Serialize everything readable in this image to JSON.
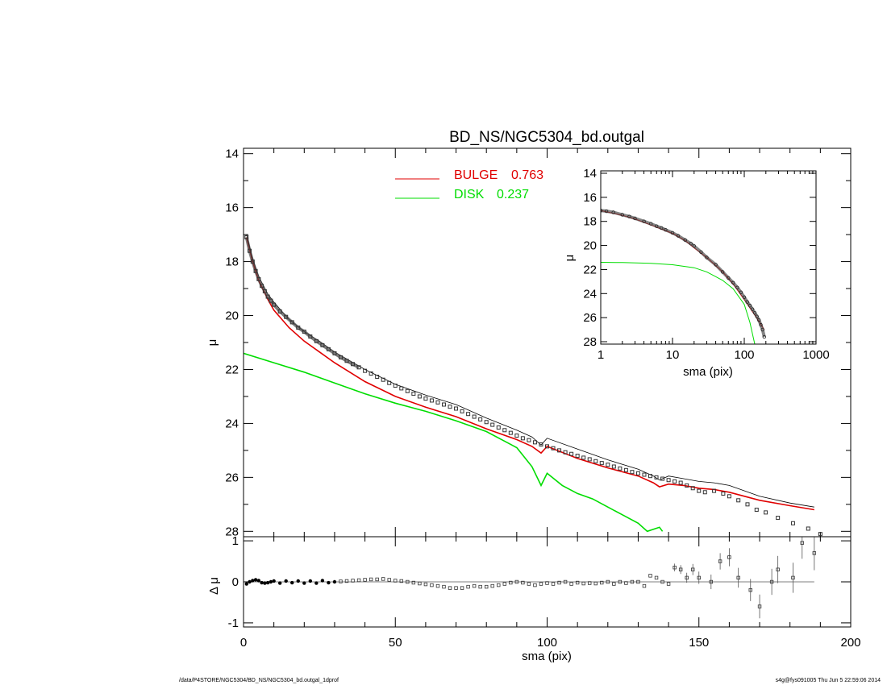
{
  "colors": {
    "bulge": "#e00000",
    "disk": "#00dd00",
    "data": "#000000"
  },
  "footer": {
    "left": "/data/P4STORE/NGC5304/BD_NS/NGC5304_bd.outgal_1dprof",
    "right": "s4g@fys091005  Thu Jun  5 22:59:06 2014"
  },
  "chart_data": [
    {
      "id": "main",
      "type": "line",
      "title": "BD_NS/NGC5304_bd.outgal",
      "xlabel": "",
      "ylabel": "μ",
      "xlim": [
        0,
        200
      ],
      "ylim": [
        28.2,
        13.8
      ],
      "y_inverted": true,
      "xticks": [
        "0",
        "50",
        "100",
        "150",
        "200"
      ],
      "yticks": [
        "14",
        "16",
        "18",
        "20",
        "22",
        "24",
        "26",
        "28"
      ],
      "legend": [
        {
          "name": "BULGE",
          "value": "0.763",
          "color": "#e00000"
        },
        {
          "name": "DISK",
          "value": "0.237",
          "color": "#00dd00"
        }
      ],
      "series": [
        {
          "name": "data (squares)",
          "x": [
            1,
            2,
            3,
            4,
            5,
            6,
            7,
            8,
            9,
            10,
            12,
            14,
            16,
            18,
            20,
            22,
            24,
            26,
            28,
            30,
            32,
            34,
            36,
            38,
            40,
            42,
            44,
            46,
            48,
            50,
            52,
            54,
            56,
            58,
            60,
            62,
            64,
            66,
            68,
            70,
            72,
            74,
            76,
            78,
            80,
            82,
            84,
            86,
            88,
            90,
            92,
            94,
            96,
            98,
            100,
            102,
            104,
            106,
            108,
            110,
            112,
            114,
            116,
            118,
            120,
            122,
            124,
            126,
            128,
            130,
            132,
            134,
            136,
            138,
            140,
            142,
            144,
            146,
            148,
            150,
            152,
            155,
            158,
            160,
            163,
            166,
            169,
            172,
            176,
            181,
            186,
            190
          ],
          "y": [
            17.1,
            17.6,
            18.0,
            18.35,
            18.65,
            18.9,
            19.1,
            19.3,
            19.45,
            19.6,
            19.85,
            20.05,
            20.25,
            20.45,
            20.6,
            20.78,
            20.95,
            21.1,
            21.25,
            21.4,
            21.55,
            21.68,
            21.8,
            21.92,
            22.05,
            22.15,
            22.27,
            22.38,
            22.5,
            22.6,
            22.7,
            22.8,
            22.9,
            23.0,
            23.08,
            23.15,
            23.22,
            23.3,
            23.38,
            23.45,
            23.55,
            23.65,
            23.75,
            23.85,
            23.95,
            24.05,
            24.15,
            24.25,
            24.35,
            24.45,
            24.55,
            24.62,
            24.7,
            24.78,
            24.85,
            24.92,
            25.0,
            25.07,
            25.13,
            25.2,
            25.27,
            25.33,
            25.4,
            25.47,
            25.53,
            25.6,
            25.67,
            25.73,
            25.8,
            25.85,
            25.9,
            25.95,
            26.0,
            26.05,
            26.1,
            26.15,
            26.2,
            26.3,
            26.4,
            26.5,
            26.55,
            26.5,
            26.6,
            26.7,
            26.85,
            27.0,
            27.2,
            27.3,
            27.5,
            27.7,
            27.9,
            28.1
          ]
        },
        {
          "name": "model total",
          "x": [
            1,
            3,
            5,
            8,
            10,
            15,
            20,
            25,
            30,
            40,
            50,
            60,
            70,
            80,
            90,
            95,
            98,
            100,
            110,
            120,
            130,
            135,
            137,
            140,
            145,
            150,
            155,
            160,
            170,
            180,
            188
          ],
          "y": [
            17.0,
            17.9,
            18.55,
            19.2,
            19.5,
            20.15,
            20.6,
            20.95,
            21.35,
            22.0,
            22.55,
            22.95,
            23.3,
            23.8,
            24.25,
            24.5,
            24.8,
            24.55,
            24.95,
            25.35,
            25.7,
            25.95,
            26.1,
            25.95,
            26.05,
            26.15,
            26.2,
            26.3,
            26.7,
            26.95,
            27.1
          ]
        },
        {
          "name": "BULGE",
          "x": [
            1,
            3,
            5,
            8,
            10,
            15,
            20,
            25,
            30,
            40,
            50,
            60,
            70,
            80,
            90,
            95,
            98,
            100,
            110,
            120,
            130,
            135,
            137,
            140,
            145,
            150,
            155,
            160,
            170,
            180,
            188
          ],
          "y": [
            17.1,
            18.0,
            18.7,
            19.4,
            19.8,
            20.45,
            20.95,
            21.35,
            21.75,
            22.45,
            23.0,
            23.4,
            23.75,
            24.2,
            24.6,
            24.85,
            25.1,
            24.85,
            25.3,
            25.65,
            25.95,
            26.2,
            26.35,
            26.25,
            26.3,
            26.4,
            26.45,
            26.55,
            26.85,
            27.05,
            27.2
          ]
        },
        {
          "name": "DISK",
          "x": [
            0,
            10,
            20,
            30,
            40,
            50,
            60,
            70,
            80,
            90,
            95,
            98,
            100,
            105,
            110,
            115,
            120,
            125,
            130,
            133,
            137,
            138
          ],
          "y": [
            21.4,
            21.75,
            22.1,
            22.5,
            22.9,
            23.25,
            23.55,
            23.9,
            24.3,
            24.9,
            25.6,
            26.3,
            25.85,
            26.3,
            26.6,
            26.8,
            27.1,
            27.4,
            27.7,
            28.0,
            27.85,
            28.0
          ]
        }
      ]
    },
    {
      "id": "residual",
      "type": "scatter",
      "title": "",
      "xlabel": "sma (pix)",
      "ylabel": "Δ μ",
      "xlim": [
        0,
        200
      ],
      "ylim": [
        -1.1,
        1.1
      ],
      "xticks": [
        "0",
        "50",
        "100",
        "150",
        "200"
      ],
      "yticks": [
        "-1",
        "0",
        "1"
      ],
      "series": [
        {
          "name": "residual",
          "x": [
            1,
            2,
            3,
            4,
            5,
            6,
            7,
            8,
            9,
            10,
            12,
            14,
            16,
            18,
            20,
            22,
            24,
            26,
            28,
            30,
            32,
            34,
            36,
            38,
            40,
            42,
            44,
            46,
            48,
            50,
            52,
            54,
            56,
            58,
            60,
            62,
            64,
            66,
            68,
            70,
            72,
            74,
            76,
            78,
            80,
            82,
            84,
            86,
            88,
            90,
            92,
            94,
            96,
            98,
            100,
            102,
            104,
            106,
            108,
            110,
            112,
            114,
            116,
            118,
            120,
            122,
            124,
            126,
            128,
            130,
            132,
            134,
            136,
            138,
            140,
            142,
            144,
            146,
            148,
            150,
            154,
            157,
            160,
            163,
            167,
            170,
            174,
            176,
            181,
            184,
            188
          ],
          "y": [
            -0.05,
            0.0,
            0.03,
            0.05,
            0.03,
            -0.02,
            -0.03,
            -0.02,
            0.0,
            0.02,
            -0.03,
            0.02,
            -0.02,
            0.02,
            -0.03,
            0.02,
            -0.03,
            0.03,
            -0.02,
            0.0,
            0.01,
            0.02,
            0.03,
            0.04,
            0.05,
            0.06,
            0.06,
            0.07,
            0.05,
            0.03,
            0.02,
            0.0,
            -0.02,
            -0.04,
            -0.06,
            -0.08,
            -0.1,
            -0.12,
            -0.15,
            -0.15,
            -0.15,
            -0.12,
            -0.1,
            -0.12,
            -0.12,
            -0.1,
            -0.08,
            -0.05,
            -0.02,
            0.0,
            -0.02,
            -0.05,
            -0.08,
            -0.05,
            -0.03,
            -0.05,
            -0.02,
            0.0,
            -0.05,
            -0.02,
            -0.04,
            -0.03,
            -0.04,
            -0.02,
            0.0,
            -0.05,
            0.0,
            -0.03,
            0.0,
            0.0,
            -0.1,
            0.15,
            0.1,
            0.0,
            -0.05,
            0.35,
            0.3,
            0.1,
            0.3,
            0.1,
            0.0,
            0.5,
            0.6,
            0.1,
            -0.2,
            -0.6,
            0.0,
            0.3,
            0.1,
            0.95,
            0.7
          ]
        }
      ]
    },
    {
      "id": "inset",
      "type": "line",
      "title": "",
      "xlabel": "sma (pix)",
      "ylabel": "μ",
      "xscale": "log",
      "xlim": [
        1,
        1000
      ],
      "ylim": [
        28.2,
        13.8
      ],
      "y_inverted": true,
      "xticks": [
        "1",
        "10",
        "100",
        "1000"
      ],
      "yticks": [
        "14",
        "16",
        "18",
        "20",
        "22",
        "24",
        "26",
        "28"
      ],
      "series": [
        {
          "name": "data",
          "x": [
            1,
            1.2,
            1.5,
            2,
            2.5,
            3,
            4,
            5,
            6,
            7,
            8,
            10,
            12,
            15,
            18,
            20,
            25,
            30,
            40,
            50,
            60,
            70,
            80,
            90,
            100,
            110,
            120,
            130,
            140,
            150,
            160,
            170,
            180,
            190
          ],
          "y": [
            17.1,
            17.15,
            17.25,
            17.45,
            17.6,
            17.75,
            18.0,
            18.2,
            18.4,
            18.55,
            18.7,
            18.95,
            19.2,
            19.55,
            19.85,
            20.05,
            20.55,
            21.0,
            21.6,
            22.2,
            22.7,
            23.1,
            23.5,
            23.9,
            24.3,
            24.7,
            25.0,
            25.3,
            25.6,
            25.9,
            26.2,
            26.6,
            27.0,
            27.6
          ]
        },
        {
          "name": "BULGE",
          "x": [
            1,
            2,
            3,
            5,
            10,
            15,
            20,
            30,
            50,
            70,
            100,
            130,
            160,
            190
          ],
          "y": [
            17.1,
            17.5,
            17.8,
            18.3,
            19.0,
            19.6,
            20.2,
            21.0,
            22.2,
            23.2,
            24.5,
            25.5,
            26.3,
            27.0
          ]
        },
        {
          "name": "DISK",
          "x": [
            1,
            2,
            5,
            10,
            20,
            30,
            50,
            70,
            100,
            120,
            140
          ],
          "y": [
            21.4,
            21.42,
            21.48,
            21.6,
            21.85,
            22.2,
            22.9,
            23.6,
            24.9,
            26.4,
            28.2
          ]
        }
      ]
    }
  ]
}
